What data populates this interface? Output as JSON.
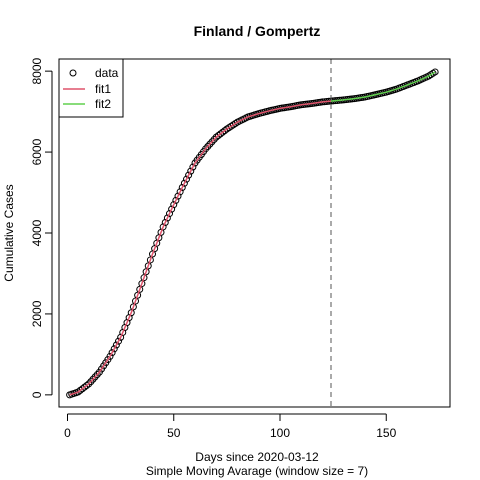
{
  "chart_data": {
    "type": "scatter",
    "title": "Finland / Gompertz",
    "xlabel": "Days since 2020-03-12",
    "subtitle": "Simple Moving Avarage (window size = 7)",
    "ylabel": "Cumulative Cases",
    "xlim": [
      -4,
      180
    ],
    "ylim": [
      -300,
      8300
    ],
    "x_ticks": [
      0,
      50,
      100,
      150
    ],
    "y_ticks": [
      0,
      2000,
      4000,
      6000,
      8000
    ],
    "vline_x": 124,
    "legend_position": "top-left",
    "series": [
      {
        "name": "data",
        "marker": "open-circle",
        "color": "#000000",
        "x_start": 1,
        "x_end": 173,
        "anchors": [
          [
            1,
            0
          ],
          [
            5,
            70
          ],
          [
            10,
            270
          ],
          [
            15,
            560
          ],
          [
            20,
            950
          ],
          [
            25,
            1420
          ],
          [
            30,
            2030
          ],
          [
            35,
            2750
          ],
          [
            40,
            3480
          ],
          [
            45,
            4150
          ],
          [
            50,
            4700
          ],
          [
            55,
            5230
          ],
          [
            60,
            5730
          ],
          [
            65,
            6080
          ],
          [
            70,
            6370
          ],
          [
            75,
            6570
          ],
          [
            80,
            6740
          ],
          [
            85,
            6870
          ],
          [
            90,
            6950
          ],
          [
            95,
            7020
          ],
          [
            100,
            7080
          ],
          [
            105,
            7120
          ],
          [
            110,
            7170
          ],
          [
            115,
            7200
          ],
          [
            120,
            7240
          ],
          [
            124,
            7260
          ],
          [
            130,
            7290
          ],
          [
            135,
            7320
          ],
          [
            140,
            7360
          ],
          [
            145,
            7420
          ],
          [
            150,
            7480
          ],
          [
            155,
            7560
          ],
          [
            160,
            7660
          ],
          [
            165,
            7760
          ],
          [
            170,
            7880
          ],
          [
            173,
            7980
          ]
        ]
      },
      {
        "name": "fit1",
        "color": "#df536b",
        "x": [
          1,
          5,
          10,
          15,
          20,
          25,
          30,
          35,
          40,
          45,
          50,
          55,
          60,
          65,
          70,
          75,
          80,
          85,
          90,
          95,
          100,
          105,
          110,
          115,
          120,
          124
        ],
        "y": [
          0,
          70,
          270,
          560,
          950,
          1420,
          2030,
          2750,
          3480,
          4150,
          4700,
          5230,
          5730,
          6080,
          6370,
          6570,
          6740,
          6870,
          6950,
          7020,
          7080,
          7120,
          7170,
          7200,
          7240,
          7260
        ]
      },
      {
        "name": "fit2",
        "color": "#61d04f",
        "x": [
          124,
          130,
          135,
          140,
          145,
          150,
          155,
          160,
          165,
          170,
          173
        ],
        "y": [
          7260,
          7290,
          7320,
          7360,
          7420,
          7480,
          7560,
          7660,
          7760,
          7880,
          7980
        ]
      }
    ]
  }
}
